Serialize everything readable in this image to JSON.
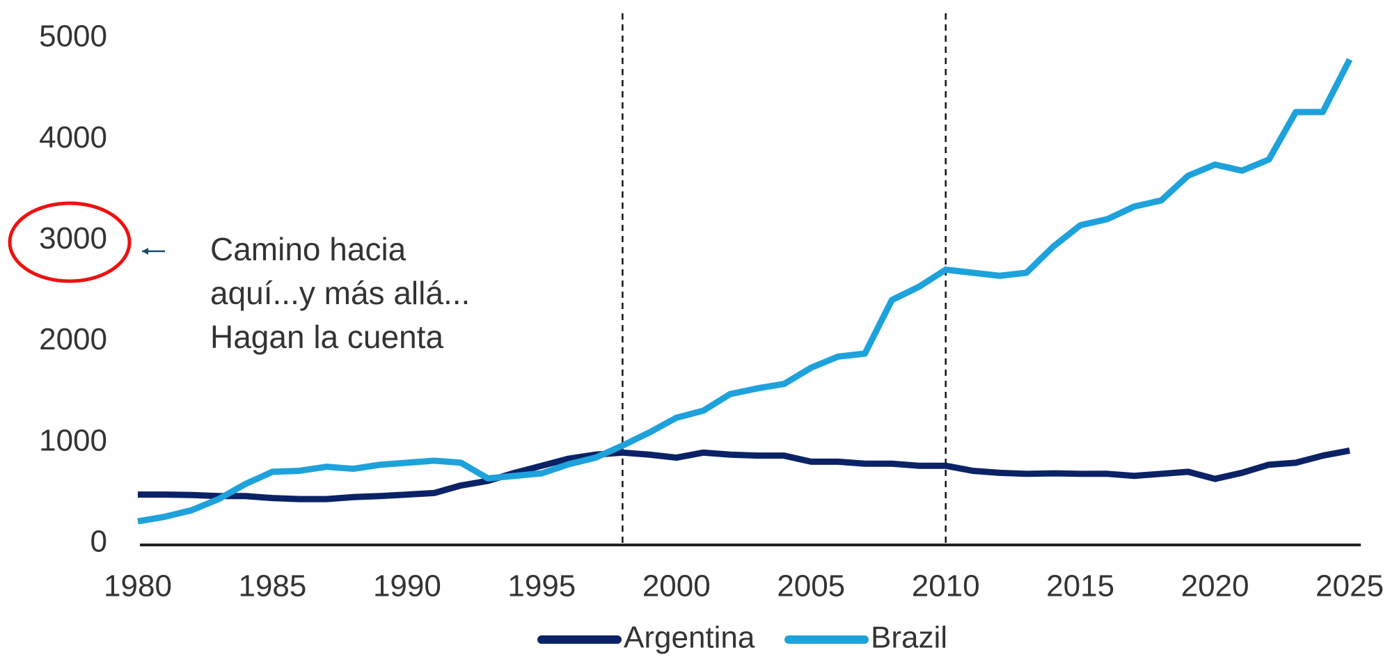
{
  "chart_data": {
    "type": "line",
    "x": [
      1980,
      1981,
      1982,
      1983,
      1984,
      1985,
      1986,
      1987,
      1988,
      1989,
      1990,
      1991,
      1992,
      1993,
      1994,
      1995,
      1996,
      1997,
      1998,
      1999,
      2000,
      2001,
      2002,
      2003,
      2004,
      2005,
      2006,
      2007,
      2008,
      2009,
      2010,
      2011,
      2012,
      2013,
      2014,
      2015,
      2016,
      2017,
      2018,
      2019,
      2020,
      2021,
      2022,
      2023,
      2024,
      2025
    ],
    "series": [
      {
        "name": "Argentina",
        "color": "#0b2266",
        "values": [
          485,
          485,
          480,
          470,
          470,
          450,
          440,
          440,
          460,
          470,
          485,
          500,
          575,
          620,
          700,
          770,
          840,
          880,
          900,
          880,
          850,
          900,
          880,
          870,
          870,
          810,
          810,
          790,
          790,
          770,
          770,
          720,
          700,
          690,
          695,
          690,
          690,
          670,
          690,
          710,
          640,
          700,
          780,
          800,
          870,
          920
        ]
      },
      {
        "name": "Brazil",
        "color": "#1da2dc",
        "values": [
          220,
          265,
          330,
          440,
          590,
          710,
          720,
          760,
          740,
          780,
          800,
          820,
          800,
          645,
          670,
          695,
          785,
          850,
          970,
          1100,
          1245,
          1315,
          1480,
          1535,
          1580,
          1740,
          1850,
          1880,
          2410,
          2540,
          2710,
          2680,
          2650,
          2680,
          2940,
          3150,
          3210,
          3335,
          3395,
          3640,
          3750,
          3690,
          3800,
          4270,
          4270,
          4790
        ]
      }
    ],
    "xlim": [
      1980,
      2025
    ],
    "xticks": [
      1980,
      1985,
      1990,
      1995,
      2000,
      2005,
      2010,
      2015,
      2020,
      2025
    ],
    "ylim": [
      0,
      5000
    ],
    "yticks": [
      0,
      1000,
      2000,
      3000,
      4000,
      5000
    ],
    "grid": false,
    "legend": "bottom",
    "reference_lines_x": [
      1998,
      2010
    ],
    "annotation": [
      "Camino hacia",
      "aquí...y más allá...",
      "Hagan la cuenta"
    ],
    "annotation_color": "#ee1111"
  }
}
